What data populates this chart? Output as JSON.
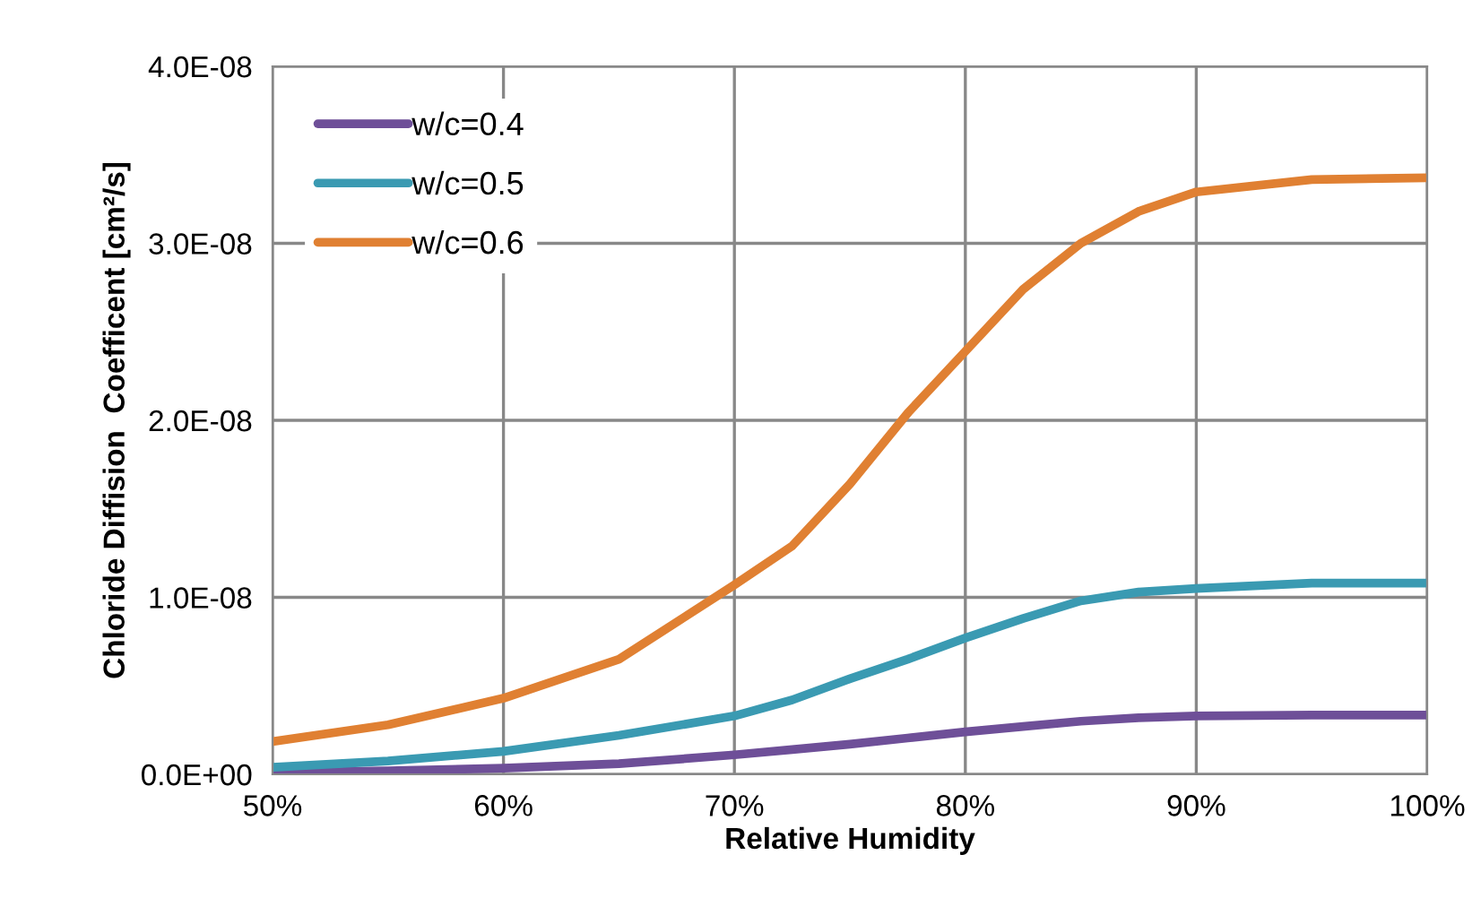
{
  "chart_data": {
    "type": "line",
    "xlabel": "Relative Humidity",
    "ylabel": "Chloride Diffision  Coefficent [cm²/s]",
    "x": [
      50,
      55,
      60,
      65,
      70,
      72.5,
      75,
      77.5,
      80,
      82.5,
      85,
      87.5,
      90,
      95,
      100
    ],
    "series": [
      {
        "name": "w/c=0.4",
        "color": "#6e4f98",
        "values": [
          1e-10,
          2e-10,
          3.5e-10,
          6e-10,
          1.1e-09,
          1.4e-09,
          1.7e-09,
          2.05e-09,
          2.4e-09,
          2.7e-09,
          3e-09,
          3.2e-09,
          3.3e-09,
          3.35e-09,
          3.35e-09
        ]
      },
      {
        "name": "w/c=0.5",
        "color": "#3a9ab2",
        "values": [
          4e-10,
          7.5e-10,
          1.3e-09,
          2.2e-09,
          3.3e-09,
          4.2e-09,
          5.4e-09,
          6.5e-09,
          7.7e-09,
          8.8e-09,
          9.8e-09,
          1.03e-08,
          1.05e-08,
          1.08e-08,
          1.08e-08
        ]
      },
      {
        "name": "w/c=0.6",
        "color": "#e08032",
        "values": [
          1.85e-09,
          2.8e-09,
          4.3e-09,
          6.5e-09,
          1.07e-08,
          1.29e-08,
          1.64e-08,
          2.04e-08,
          2.39e-08,
          2.74e-08,
          3e-08,
          3.18e-08,
          3.29e-08,
          3.36e-08,
          3.37e-08
        ]
      }
    ],
    "xlim": [
      50,
      100
    ],
    "xticks": [
      {
        "value": 50,
        "label": "50%"
      },
      {
        "value": 60,
        "label": "60%"
      },
      {
        "value": 70,
        "label": "70%"
      },
      {
        "value": 80,
        "label": "80%"
      },
      {
        "value": 90,
        "label": "90%"
      },
      {
        "value": 100,
        "label": "100%"
      }
    ],
    "ylim": [
      0,
      4e-08
    ],
    "yticks": [
      {
        "value": 0,
        "label": "0.0E+00"
      },
      {
        "value": 1e-08,
        "label": "1.0E-08"
      },
      {
        "value": 2e-08,
        "label": "2.0E-08"
      },
      {
        "value": 3e-08,
        "label": "3.0E-08"
      },
      {
        "value": 4e-08,
        "label": "4.0E-08"
      }
    ],
    "grid": true,
    "legend": "top left",
    "marker": "none",
    "line_style": "solid"
  }
}
